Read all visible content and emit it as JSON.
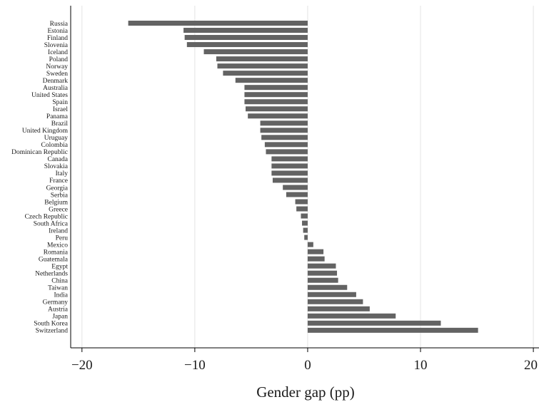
{
  "chart_data": {
    "type": "bar",
    "orientation": "horizontal",
    "title": "",
    "xlabel": "Gender gap (pp)",
    "ylabel": "",
    "xlim": [
      -21,
      20.5
    ],
    "xticks": [
      -20,
      -10,
      0,
      10,
      20
    ],
    "xtick_labels": [
      "−20",
      "−10",
      "0",
      "10",
      "20"
    ],
    "grid": "vertical",
    "legend": "none",
    "bar_color": "#636363",
    "categories": [
      "Russia",
      "Estonia",
      "Finland",
      "Slovenia",
      "Iceland",
      "Poland",
      "Norway",
      "Sweden",
      "Denmark",
      "Australia",
      "United States",
      "Spain",
      "Israel",
      "Panama",
      "Brazil",
      "United Kingdom",
      "Uruguay",
      "Colombia",
      "Dominican Republic",
      "Canada",
      "Slovakia",
      "Italy",
      "France",
      "Georgia",
      "Serbia",
      "Belgium",
      "Greece",
      "Czech Republic",
      "South Africa",
      "Ireland",
      "Peru",
      "Mexico",
      "Romania",
      "Guatemala",
      "Egypt",
      "Netherlands",
      "China",
      "Taiwan",
      "India",
      "Germany",
      "Austria",
      "Japan",
      "South Korea",
      "Switzerland"
    ],
    "values": [
      -15.9,
      -11.0,
      -10.9,
      -10.7,
      -9.2,
      -8.1,
      -8.0,
      -7.5,
      -6.4,
      -5.6,
      -5.6,
      -5.6,
      -5.5,
      -5.3,
      -4.2,
      -4.2,
      -4.1,
      -3.8,
      -3.7,
      -3.2,
      -3.2,
      -3.2,
      -3.1,
      -2.2,
      -1.9,
      -1.1,
      -1.0,
      -0.6,
      -0.5,
      -0.4,
      -0.3,
      0.5,
      1.4,
      1.5,
      2.5,
      2.6,
      2.7,
      3.5,
      4.3,
      4.9,
      5.5,
      7.8,
      11.8,
      15.1
    ]
  }
}
